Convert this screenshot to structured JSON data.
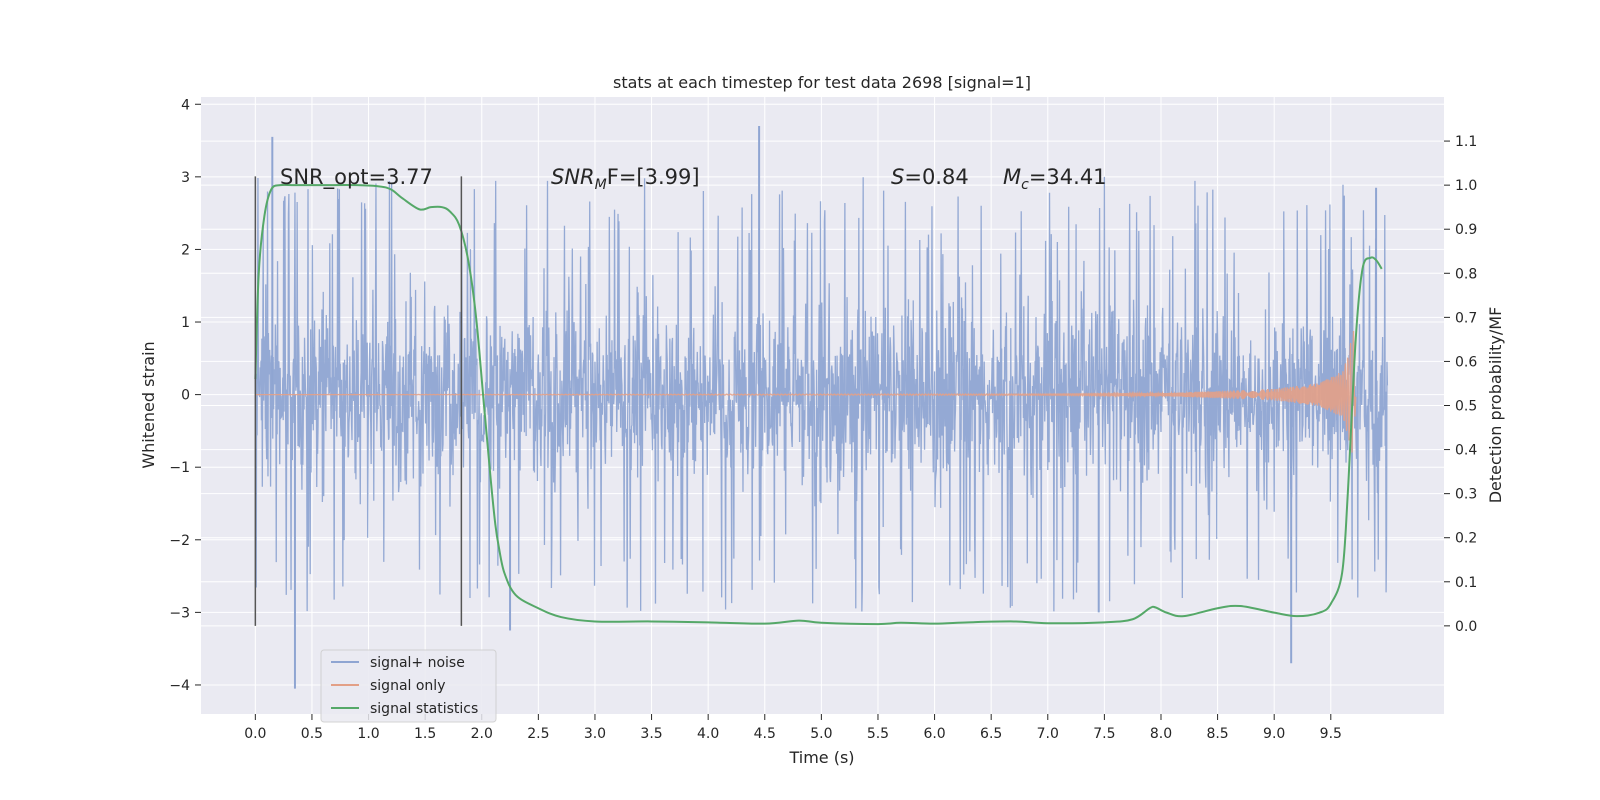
{
  "chart_data": {
    "type": "line",
    "title": "stats at each timestep for test data 2698 [signal=1]",
    "xlabel": "Time (s)",
    "ylabel_left": "Whitened strain",
    "ylabel_right": "Detection probability/MF",
    "xlim": [
      -0.48,
      10.5
    ],
    "ylim_left": [
      -4.4,
      4.1
    ],
    "ylim_right": [
      -0.2,
      1.2
    ],
    "x_ticks": [
      "0.0",
      "0.5",
      "1.0",
      "1.5",
      "2.0",
      "2.5",
      "3.0",
      "3.5",
      "4.0",
      "4.5",
      "5.0",
      "5.5",
      "6.0",
      "6.5",
      "7.0",
      "7.5",
      "8.0",
      "8.5",
      "9.0",
      "9.5"
    ],
    "y_ticks_left": [
      "4",
      "3",
      "2",
      "1",
      "0",
      "−1",
      "−2",
      "−3",
      "−4"
    ],
    "y_ticks_right": [
      "1.1",
      "1.0",
      "0.9",
      "0.8",
      "0.7",
      "0.6",
      "0.5",
      "0.4",
      "0.3",
      "0.2",
      "0.1",
      "0.0"
    ],
    "grid": true,
    "legend_position": "lower-left",
    "annotations": {
      "snr_opt": "SNR_opt=3.77",
      "snr_mf_var": "SNR",
      "snr_mf_sub": "M",
      "snr_mf_tail": "F=[3.99]",
      "s_var": "S",
      "s_val": "=0.84",
      "mc_var": "M",
      "mc_sub": "c",
      "mc_val": "=34.41"
    },
    "vertical_markers_x": [
      0.0,
      1.82
    ],
    "series": [
      {
        "name": "signal+ noise",
        "axis": "left",
        "color": "#8fa5d2",
        "envelope": {
          "x": [
            0.0,
            10.0
          ],
          "typical_amplitude": [
            -1.7,
            1.7
          ],
          "extremes": [
            [
              0.15,
              3.55
            ],
            [
              0.35,
              -4.05
            ],
            [
              4.45,
              3.7
            ],
            [
              7.45,
              -3.0
            ],
            [
              9.15,
              -3.7
            ],
            [
              9.9,
              2.85
            ],
            [
              2.25,
              -3.25
            ]
          ]
        }
      },
      {
        "name": "signal only",
        "axis": "left",
        "color": "#e3a087",
        "x": [
          0.0,
          7.0,
          8.0,
          9.0,
          9.4,
          9.6,
          9.65,
          9.7,
          9.72
        ],
        "amplitude": [
          0.0,
          0.01,
          0.02,
          0.08,
          0.16,
          0.32,
          0.55,
          0.9,
          0.05
        ]
      },
      {
        "name": "signal statistics",
        "axis": "right",
        "color": "#55a868",
        "x": [
          0.0,
          0.03,
          0.08,
          0.14,
          0.22,
          0.35,
          0.6,
          0.9,
          1.1,
          1.2,
          1.3,
          1.45,
          1.55,
          1.65,
          1.72,
          1.8,
          1.88,
          1.95,
          2.02,
          2.08,
          2.12,
          2.15,
          2.2,
          2.3,
          2.5,
          2.7,
          3.0,
          3.5,
          4.0,
          4.5,
          4.8,
          5.0,
          5.5,
          5.7,
          6.0,
          6.3,
          6.7,
          7.0,
          7.5,
          7.75,
          7.9,
          7.95,
          8.05,
          8.2,
          8.5,
          8.7,
          9.0,
          9.2,
          9.4,
          9.5,
          9.6,
          9.65,
          9.72,
          9.78,
          9.85,
          9.9,
          9.95
        ],
        "y": [
          0.56,
          0.8,
          0.93,
          0.99,
          1.0,
          1.0,
          1.0,
          1.0,
          0.997,
          0.99,
          0.97,
          0.945,
          0.95,
          0.95,
          0.94,
          0.91,
          0.83,
          0.7,
          0.5,
          0.33,
          0.23,
          0.18,
          0.12,
          0.07,
          0.04,
          0.02,
          0.01,
          0.01,
          0.008,
          0.005,
          0.012,
          0.007,
          0.004,
          0.007,
          0.005,
          0.008,
          0.01,
          0.006,
          0.008,
          0.015,
          0.04,
          0.042,
          0.03,
          0.022,
          0.04,
          0.045,
          0.03,
          0.022,
          0.03,
          0.05,
          0.12,
          0.3,
          0.65,
          0.81,
          0.835,
          0.83,
          0.81
        ]
      }
    ]
  }
}
